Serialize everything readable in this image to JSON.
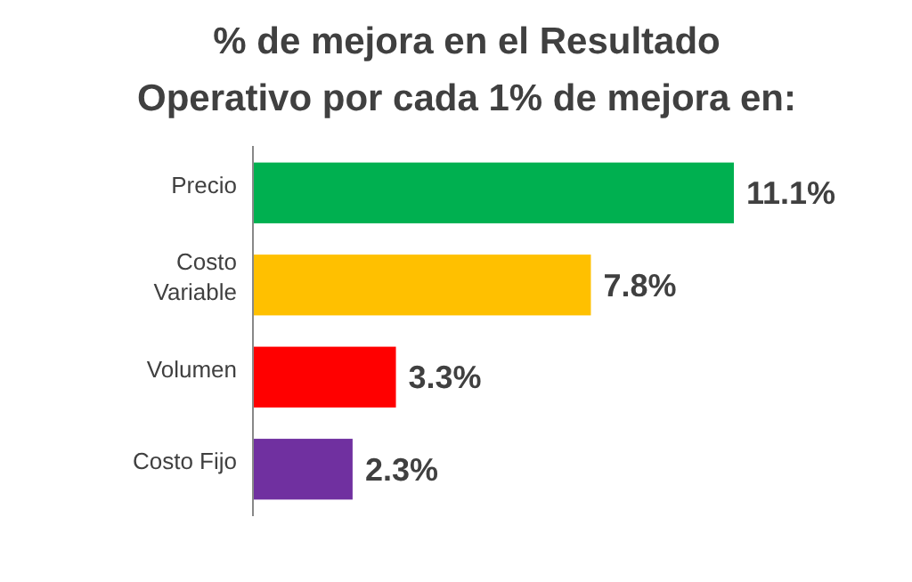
{
  "chart_data": {
    "type": "bar",
    "orientation": "horizontal",
    "title": "% de mejora en el Resultado Operativo por cada 1% de mejora en:",
    "categories": [
      "Precio",
      "Costo Variable",
      "Volumen",
      "Costo Fijo"
    ],
    "values": [
      11.1,
      7.8,
      3.3,
      2.3
    ],
    "colors": [
      "#00b050",
      "#ffc000",
      "#ff0000",
      "#7030a0"
    ],
    "value_labels": [
      "11.1%",
      "7.8%",
      "3.3%",
      "2.3%"
    ]
  }
}
